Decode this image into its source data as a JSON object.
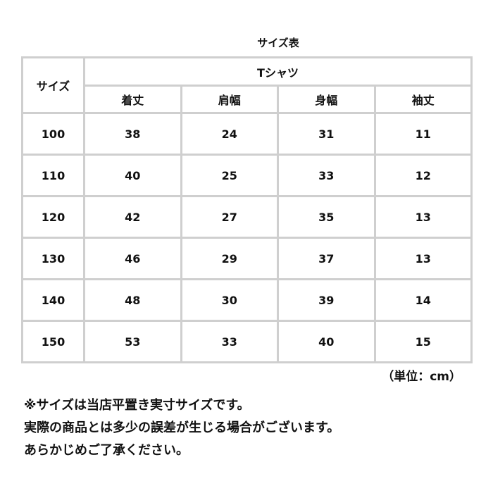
{
  "title": "サイズ表",
  "table": {
    "size_header": "サイズ",
    "group_header": "Tシャツ",
    "columns": [
      "着丈",
      "肩幅",
      "身幅",
      "袖丈"
    ],
    "rows": [
      {
        "size": "100",
        "values": [
          "38",
          "24",
          "31",
          "11"
        ]
      },
      {
        "size": "110",
        "values": [
          "40",
          "25",
          "33",
          "12"
        ]
      },
      {
        "size": "120",
        "values": [
          "42",
          "27",
          "35",
          "13"
        ]
      },
      {
        "size": "130",
        "values": [
          "46",
          "29",
          "37",
          "13"
        ]
      },
      {
        "size": "140",
        "values": [
          "48",
          "30",
          "39",
          "14"
        ]
      },
      {
        "size": "150",
        "values": [
          "53",
          "33",
          "40",
          "15"
        ]
      }
    ]
  },
  "unit": "（単位：cm）",
  "notes": [
    "※サイズは当店平置き実寸サイズです。",
    "実際の商品とは多少の誤差が生じる場合がございます。",
    "あらかじめご了承ください。"
  ]
}
